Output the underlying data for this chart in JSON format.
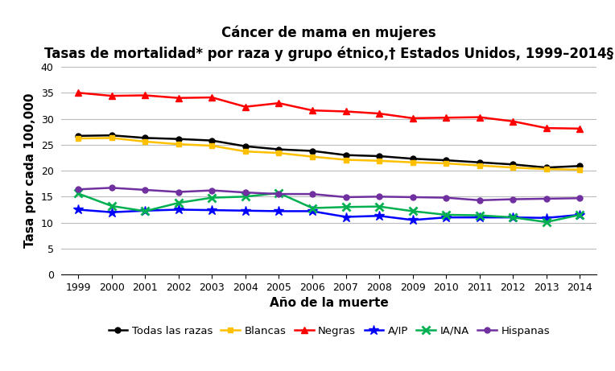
{
  "title_line1": "Cáncer de mama en mujeres",
  "title_line2": "Tasas de mortalidad* por raza y grupo étnico,† Estados Unidos, 1999–2014§",
  "xlabel": "Año de la muerte",
  "ylabel": "Tasa por cada 100,000",
  "years": [
    1999,
    2000,
    2001,
    2002,
    2003,
    2004,
    2005,
    2006,
    2007,
    2008,
    2009,
    2010,
    2011,
    2012,
    2013,
    2014
  ],
  "series_order": [
    "Todas las razas",
    "Blancas",
    "Negras",
    "A/IP",
    "IA/NA",
    "Hispanas"
  ],
  "series": {
    "Todas las razas": {
      "values": [
        26.7,
        26.8,
        26.3,
        26.1,
        25.8,
        24.7,
        24.1,
        23.8,
        23.0,
        22.8,
        22.3,
        22.0,
        21.6,
        21.2,
        20.6,
        20.9
      ],
      "color": "#000000",
      "marker": "o",
      "markersize": 5,
      "linewidth": 1.8
    },
    "Blancas": {
      "values": [
        26.2,
        26.3,
        25.6,
        25.1,
        24.8,
        23.7,
        23.4,
        22.7,
        22.1,
        21.9,
        21.6,
        21.4,
        21.0,
        20.6,
        20.3,
        20.2
      ],
      "color": "#FFC000",
      "marker": "s",
      "markersize": 5,
      "linewidth": 1.8
    },
    "Negras": {
      "values": [
        35.0,
        34.4,
        34.5,
        34.0,
        34.1,
        32.3,
        33.0,
        31.6,
        31.4,
        31.0,
        30.1,
        30.2,
        30.3,
        29.5,
        28.2,
        28.1
      ],
      "color": "#FF0000",
      "marker": "^",
      "markersize": 6,
      "linewidth": 1.8
    },
    "A/IP": {
      "values": [
        12.5,
        12.0,
        12.3,
        12.5,
        12.4,
        12.3,
        12.2,
        12.2,
        11.1,
        11.3,
        10.5,
        11.0,
        11.0,
        11.0,
        10.9,
        11.5
      ],
      "color": "#0000FF",
      "marker": "*",
      "markersize": 9,
      "linewidth": 1.8
    },
    "IA/NA": {
      "values": [
        15.6,
        13.2,
        12.2,
        13.8,
        14.8,
        15.0,
        15.7,
        12.8,
        13.0,
        13.1,
        12.2,
        11.5,
        11.4,
        11.0,
        10.1,
        11.5
      ],
      "color": "#00B050",
      "marker": "x",
      "markersize": 7,
      "markeredgewidth": 2,
      "linewidth": 1.8
    },
    "Hispanas": {
      "values": [
        16.4,
        16.7,
        16.3,
        15.9,
        16.2,
        15.8,
        15.5,
        15.5,
        14.9,
        15.0,
        14.9,
        14.8,
        14.3,
        14.5,
        14.6,
        14.7
      ],
      "color": "#7030A0",
      "marker": "o",
      "markersize": 5,
      "linewidth": 1.8
    }
  },
  "ylim": [
    0,
    40
  ],
  "yticks": [
    0,
    5,
    10,
    15,
    20,
    25,
    30,
    35,
    40
  ],
  "background_color": "#FFFFFF",
  "grid_color": "#BBBBBB",
  "title_fontsize": 12,
  "subtitle_fontsize": 11,
  "axis_label_fontsize": 11,
  "tick_fontsize": 9,
  "legend_fontsize": 9.5
}
